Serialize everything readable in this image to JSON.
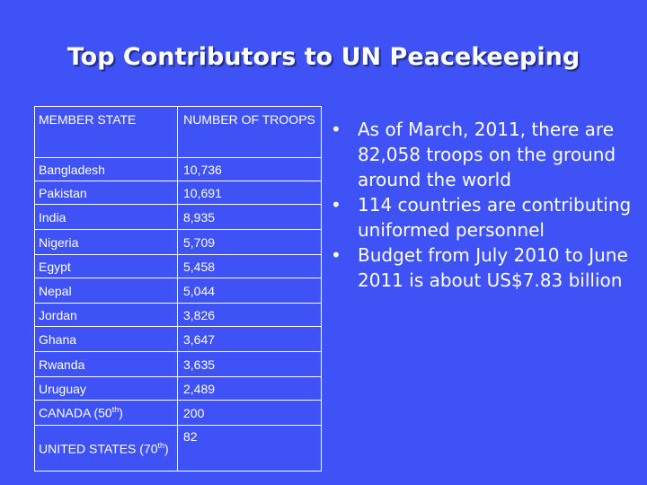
{
  "slide": {
    "title": "Top Contributors to UN Peacekeeping"
  },
  "table": {
    "headers": [
      "MEMBER STATE",
      "NUMBER OF TROOPS"
    ],
    "rows": [
      {
        "country": "Bangladesh",
        "troops": "10,736"
      },
      {
        "country": "Pakistan",
        "troops": "10,691"
      },
      {
        "country": "India",
        "troops": "8,935"
      },
      {
        "country": "Nigeria",
        "troops": "5,709"
      },
      {
        "country": "Egypt",
        "troops": "5,458"
      },
      {
        "country": "Nepal",
        "troops": "5,044"
      },
      {
        "country": "Jordan",
        "troops": "3,826"
      },
      {
        "country": "Ghana",
        "troops": "3,647"
      },
      {
        "country": "Rwanda",
        "troops": "3,635"
      },
      {
        "country": "Uruguay",
        "troops": "2,489"
      },
      {
        "country": "CANADA (50",
        "sup": "th",
        "suffix": ")",
        "troops": "200"
      },
      {
        "country": "UNITED STATES (70",
        "sup": "th",
        "suffix": ")",
        "troops": "82"
      }
    ]
  },
  "bullets": {
    "marker": "•",
    "items": [
      "As of March, 2011, there are 82,058 troops on the ground around the world",
      "114 countries are contributing uniformed personnel",
      "Budget from July 2010 to June 2011 is about US$7.83 billion"
    ]
  }
}
